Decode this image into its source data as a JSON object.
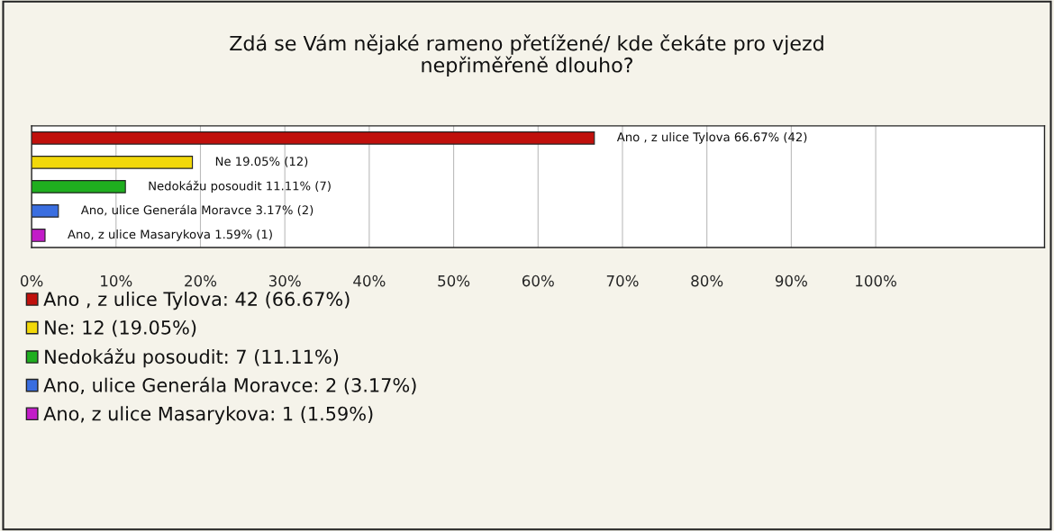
{
  "chart_data": {
    "type": "bar",
    "orientation": "horizontal",
    "title": "Zdá se Vám nějaké rameno přetížené/ kde čekáte pro vjezd\nnepřiměřeně dlouho?",
    "categories": [
      null,
      null,
      null,
      null,
      null
    ],
    "series": [
      {
        "name": "Ano , z ulice Tylova: 42 (66.67%)",
        "color": "#c0100c",
        "values": [
          66.67,
          null,
          null,
          null,
          null
        ],
        "value_labels": [
          "Ano , z ulice Tylova 66.67% (42)",
          null,
          null,
          null,
          null
        ]
      },
      {
        "name": "Ne: 12 (19.05%)",
        "color": "#f2d80a",
        "values": [
          null,
          19.05,
          null,
          null,
          null
        ],
        "value_labels": [
          null,
          "Ne 19.05% (12)",
          null,
          null,
          null
        ]
      },
      {
        "name": "Nedokážu posoudit: 7 (11.11%)",
        "color": "#1fae1f",
        "values": [
          null,
          null,
          11.11,
          null,
          null
        ],
        "value_labels": [
          null,
          null,
          "Nedokážu posoudit 11.11% (7)",
          null,
          null
        ]
      },
      {
        "name": "Ano, ulice Generála Moravce: 2 (3.17%)",
        "color": "#3a6ee0",
        "values": [
          null,
          null,
          null,
          3.17,
          null
        ],
        "value_labels": [
          null,
          null,
          null,
          "Ano, ulice Generála Moravce 3.17% (2)",
          null
        ]
      },
      {
        "name": "Ano, z ulice Masarykova: 1 (1.59%)",
        "color": "#c21cc8",
        "values": [
          null,
          null,
          null,
          null,
          1.59
        ],
        "value_labels": [
          null,
          null,
          null,
          null,
          "Ano, z ulice Masarykova 1.59% (1)"
        ]
      }
    ],
    "xlim": [
      0,
      120
    ],
    "xticks": [
      {
        "value": 0,
        "label": "0%"
      },
      {
        "value": 10,
        "label": "10%"
      },
      {
        "value": 20,
        "label": "20%"
      },
      {
        "value": 30,
        "label": "30%"
      },
      {
        "value": 40,
        "label": "40%"
      },
      {
        "value": 50,
        "label": "50%"
      },
      {
        "value": 60,
        "label": "60%"
      },
      {
        "value": 70,
        "label": "70%"
      },
      {
        "value": 80,
        "label": "80%"
      },
      {
        "value": 90,
        "label": "90%"
      },
      {
        "value": 100,
        "label": "100%"
      }
    ],
    "grid": "x",
    "legend": "bottom left",
    "tick_labels": "x"
  }
}
